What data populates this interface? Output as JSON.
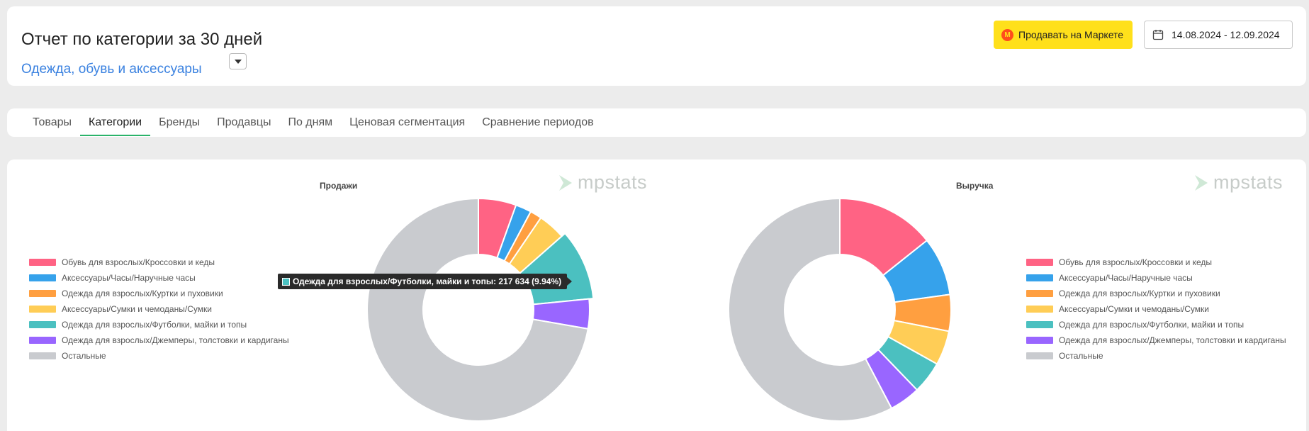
{
  "header": {
    "title": "Отчет по категории за 30 дней",
    "category": "Одежда, обувь и аксессуары",
    "market_button": "Продавать на Маркете",
    "date_range": "14.08.2024 - 12.09.2024"
  },
  "tabs": [
    {
      "label": "Товары",
      "active": false
    },
    {
      "label": "Категории",
      "active": true
    },
    {
      "label": "Бренды",
      "active": false
    },
    {
      "label": "Продавцы",
      "active": false
    },
    {
      "label": "По дням",
      "active": false
    },
    {
      "label": "Ценовая сегментация",
      "active": false
    },
    {
      "label": "Сравнение периодов",
      "active": false
    }
  ],
  "watermark": "mpstats",
  "legend": [
    {
      "label": "Обувь для взрослых/Кроссовки и кеды",
      "color": "#ff6384"
    },
    {
      "label": "Аксессуары/Часы/Наручные часы",
      "color": "#36a2eb"
    },
    {
      "label": "Одежда для взрослых/Куртки и пуховики",
      "color": "#ff9f40"
    },
    {
      "label": "Аксессуары/Сумки и чемоданы/Сумки",
      "color": "#ffcd56"
    },
    {
      "label": "Одежда для взрослых/Футболки, майки и топы",
      "color": "#4bc0c0"
    },
    {
      "label": "Одежда для взрослых/Джемперы, толстовки и кардиганы",
      "color": "#9966ff"
    },
    {
      "label": "Остальные",
      "color": "#c9cbcf"
    }
  ],
  "tooltip": {
    "text": "Одежда для взрослых/Футболки, майки и топы: 217 634 (9.94%)",
    "color": "#4bc0c0"
  },
  "chart_data": [
    {
      "type": "pie",
      "title": "Продажи",
      "categories": [
        "Обувь для взрослых/Кроссовки и кеды",
        "Аксессуары/Часы/Наручные часы",
        "Одежда для взрослых/Куртки и пуховики",
        "Аксессуары/Сумки и чемоданы/Сумки",
        "Одежда для взрослых/Футболки, майки и топы",
        "Одежда для взрослых/Джемперы, толстовки и кардиганы",
        "Остальные"
      ],
      "values": [
        5.5,
        2.3,
        1.7,
        4.0,
        9.94,
        4.3,
        72.26
      ],
      "highlighted": 4
    },
    {
      "type": "pie",
      "title": "Выручка",
      "categories": [
        "Обувь для взрослых/Кроссовки и кеды",
        "Аксессуары/Часы/Наручные часы",
        "Одежда для взрослых/Куртки и пуховики",
        "Аксессуары/Сумки и чемоданы/Сумки",
        "Одежда для взрослых/Футболки, майки и топы",
        "Одежда для взрослых/Джемперы, толстовки и кардиганы",
        "Остальные"
      ],
      "values": [
        14.3,
        8.5,
        5.3,
        5.0,
        4.7,
        4.5,
        57.7
      ],
      "highlighted": null
    }
  ]
}
